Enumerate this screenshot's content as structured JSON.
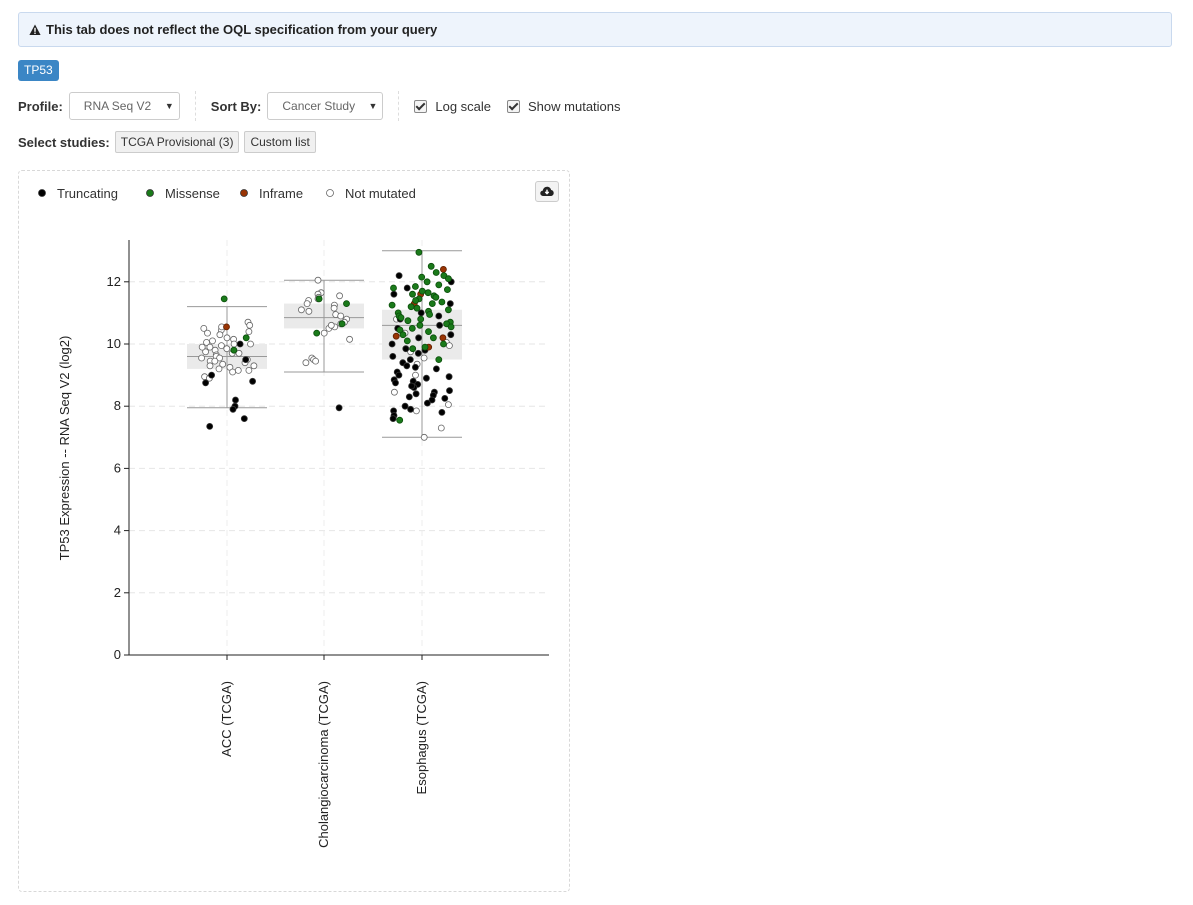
{
  "alert": {
    "text": "This tab does not reflect the OQL specification from your query"
  },
  "gene_tab": "TP53",
  "toolbar": {
    "profile_label": "Profile:",
    "profile_value": "RNA Seq V2",
    "sort_label": "Sort By:",
    "sort_value": "Cancer Study",
    "log_scale_label": "Log scale",
    "log_scale_checked": true,
    "show_mutations_label": "Show mutations",
    "show_mutations_checked": true
  },
  "studies": {
    "label": "Select studies:",
    "preset_button": "TCGA Provisional (3)",
    "custom_button": "Custom list"
  },
  "legend": [
    {
      "label": "Truncating",
      "color": "#000000"
    },
    {
      "label": "Missense",
      "color": "#1a7a1a"
    },
    {
      "label": "Inframe",
      "color": "#993404"
    },
    {
      "label": "Not mutated",
      "color": "#ffffff"
    }
  ],
  "chart_data": {
    "type": "scatter",
    "subtype": "box-with-jitter",
    "ylabel": "TP53 Expression -- RNA Seq V2 (log2)",
    "ylim": [
      0,
      13
    ],
    "yticks": [
      0,
      2,
      4,
      6,
      8,
      10,
      12
    ],
    "categories": [
      "ACC (TCGA)",
      "Cholangiocarcinoma (TCGA)",
      "Esophagus (TCGA)"
    ],
    "boxes": [
      {
        "category": "ACC (TCGA)",
        "whisker_low": 7.95,
        "q1": 9.2,
        "median": 9.6,
        "q3": 10.0,
        "whisker_high": 11.2
      },
      {
        "category": "Cholangiocarcinoma (TCGA)",
        "whisker_low": 9.1,
        "q1": 10.5,
        "median": 10.85,
        "q3": 11.3,
        "whisker_high": 12.05
      },
      {
        "category": "Esophagus (TCGA)",
        "whisker_low": 7.0,
        "q1": 9.5,
        "median": 10.6,
        "q3": 11.1,
        "whisker_high": 13.0
      }
    ],
    "series": [
      {
        "name": "Truncating",
        "points": [
          [
            0,
            10.0
          ],
          [
            0,
            9.5
          ],
          [
            0,
            9.0
          ],
          [
            0,
            8.8
          ],
          [
            0,
            8.75
          ],
          [
            0,
            8.2
          ],
          [
            0,
            8.0
          ],
          [
            0,
            7.9
          ],
          [
            0,
            7.6
          ],
          [
            0,
            7.35
          ],
          [
            1,
            7.95
          ],
          [
            2,
            12.2
          ],
          [
            2,
            12.0
          ],
          [
            2,
            11.6
          ],
          [
            2,
            11.3
          ],
          [
            2,
            11.0
          ],
          [
            2,
            10.9
          ],
          [
            2,
            10.6
          ],
          [
            2,
            10.5
          ],
          [
            2,
            10.2
          ],
          [
            2,
            10.0
          ],
          [
            2,
            9.85
          ],
          [
            2,
            9.7
          ],
          [
            2,
            9.6
          ],
          [
            2,
            9.5
          ],
          [
            2,
            9.4
          ],
          [
            2,
            9.3
          ],
          [
            2,
            9.2
          ],
          [
            2,
            9.1
          ],
          [
            2,
            9.0
          ],
          [
            2,
            8.95
          ],
          [
            2,
            8.9
          ],
          [
            2,
            8.85
          ],
          [
            2,
            8.8
          ],
          [
            2,
            8.75
          ],
          [
            2,
            8.7
          ],
          [
            2,
            8.6
          ],
          [
            2,
            8.5
          ],
          [
            2,
            8.45
          ],
          [
            2,
            8.4
          ],
          [
            2,
            8.35
          ],
          [
            2,
            8.3
          ],
          [
            2,
            8.25
          ],
          [
            2,
            8.2
          ],
          [
            2,
            8.1
          ],
          [
            2,
            8.0
          ],
          [
            2,
            7.9
          ],
          [
            2,
            7.85
          ],
          [
            2,
            7.8
          ],
          [
            2,
            7.7
          ],
          [
            2,
            7.6
          ],
          [
            2,
            10.8
          ],
          [
            2,
            11.8
          ],
          [
            2,
            10.3
          ],
          [
            2,
            9.8
          ],
          [
            2,
            9.25
          ],
          [
            2,
            8.65
          ]
        ]
      },
      {
        "name": "Missense",
        "points": [
          [
            0,
            11.45
          ],
          [
            0,
            10.2
          ],
          [
            0,
            9.8
          ],
          [
            1,
            11.45
          ],
          [
            1,
            11.3
          ],
          [
            1,
            10.65
          ],
          [
            1,
            10.35
          ],
          [
            2,
            12.95
          ],
          [
            2,
            12.5
          ],
          [
            2,
            12.3
          ],
          [
            2,
            12.2
          ],
          [
            2,
            12.15
          ],
          [
            2,
            12.1
          ],
          [
            2,
            12.0
          ],
          [
            2,
            11.9
          ],
          [
            2,
            11.85
          ],
          [
            2,
            11.8
          ],
          [
            2,
            11.75
          ],
          [
            2,
            11.7
          ],
          [
            2,
            11.65
          ],
          [
            2,
            11.6
          ],
          [
            2,
            11.55
          ],
          [
            2,
            11.5
          ],
          [
            2,
            11.45
          ],
          [
            2,
            11.4
          ],
          [
            2,
            11.35
          ],
          [
            2,
            11.3
          ],
          [
            2,
            11.25
          ],
          [
            2,
            11.2
          ],
          [
            2,
            11.15
          ],
          [
            2,
            11.1
          ],
          [
            2,
            11.05
          ],
          [
            2,
            11.0
          ],
          [
            2,
            10.95
          ],
          [
            2,
            10.9
          ],
          [
            2,
            10.85
          ],
          [
            2,
            10.8
          ],
          [
            2,
            10.75
          ],
          [
            2,
            10.7
          ],
          [
            2,
            10.65
          ],
          [
            2,
            10.6
          ],
          [
            2,
            10.55
          ],
          [
            2,
            10.5
          ],
          [
            2,
            10.45
          ],
          [
            2,
            10.4
          ],
          [
            2,
            10.3
          ],
          [
            2,
            10.2
          ],
          [
            2,
            10.1
          ],
          [
            2,
            10.0
          ],
          [
            2,
            9.9
          ],
          [
            2,
            9.85
          ],
          [
            2,
            9.5
          ],
          [
            2,
            7.55
          ]
        ]
      },
      {
        "name": "Inframe",
        "points": [
          [
            0,
            10.55
          ],
          [
            2,
            12.4
          ],
          [
            2,
            11.6
          ],
          [
            2,
            11.3
          ],
          [
            2,
            10.25
          ],
          [
            2,
            10.2
          ],
          [
            2,
            9.9
          ]
        ]
      },
      {
        "name": "Not mutated",
        "points": [
          [
            0,
            10.7
          ],
          [
            0,
            10.6
          ],
          [
            0,
            10.5
          ],
          [
            0,
            10.45
          ],
          [
            0,
            10.4
          ],
          [
            0,
            10.35
          ],
          [
            0,
            10.3
          ],
          [
            0,
            10.2
          ],
          [
            0,
            10.15
          ],
          [
            0,
            10.1
          ],
          [
            0,
            10.05
          ],
          [
            0,
            10.0
          ],
          [
            0,
            9.95
          ],
          [
            0,
            9.9
          ],
          [
            0,
            9.85
          ],
          [
            0,
            9.8
          ],
          [
            0,
            9.75
          ],
          [
            0,
            9.7
          ],
          [
            0,
            9.65
          ],
          [
            0,
            9.6
          ],
          [
            0,
            9.55
          ],
          [
            0,
            9.5
          ],
          [
            0,
            9.45
          ],
          [
            0,
            9.4
          ],
          [
            0,
            9.35
          ],
          [
            0,
            9.3
          ],
          [
            0,
            9.25
          ],
          [
            0,
            9.2
          ],
          [
            0,
            9.15
          ],
          [
            0,
            9.1
          ],
          [
            0,
            8.95
          ],
          [
            0,
            8.9
          ],
          [
            0,
            10.55
          ],
          [
            0,
            9.9
          ],
          [
            0,
            9.3
          ],
          [
            0,
            9.55
          ],
          [
            0,
            10.0
          ],
          [
            0,
            9.7
          ],
          [
            0,
            9.15
          ],
          [
            0,
            9.45
          ],
          [
            1,
            12.05
          ],
          [
            1,
            11.65
          ],
          [
            1,
            11.6
          ],
          [
            1,
            11.55
          ],
          [
            1,
            11.5
          ],
          [
            1,
            11.45
          ],
          [
            1,
            11.4
          ],
          [
            1,
            11.3
          ],
          [
            1,
            11.25
          ],
          [
            1,
            11.1
          ],
          [
            1,
            11.05
          ],
          [
            1,
            10.95
          ],
          [
            1,
            10.9
          ],
          [
            1,
            10.8
          ],
          [
            1,
            10.7
          ],
          [
            1,
            10.65
          ],
          [
            1,
            10.55
          ],
          [
            1,
            10.5
          ],
          [
            1,
            10.35
          ],
          [
            1,
            10.15
          ],
          [
            1,
            9.55
          ],
          [
            1,
            9.5
          ],
          [
            1,
            9.4
          ],
          [
            1,
            9.45
          ],
          [
            1,
            10.6
          ],
          [
            1,
            11.15
          ],
          [
            2,
            10.35
          ],
          [
            2,
            10.05
          ],
          [
            2,
            9.95
          ],
          [
            2,
            9.75
          ],
          [
            2,
            9.55
          ],
          [
            2,
            9.0
          ],
          [
            2,
            8.45
          ],
          [
            2,
            8.05
          ],
          [
            2,
            7.85
          ],
          [
            2,
            7.3
          ],
          [
            2,
            7.0
          ],
          [
            2,
            9.35
          ],
          [
            2,
            10.8
          ]
        ]
      }
    ],
    "legend_position": "top-left",
    "grid": true
  }
}
